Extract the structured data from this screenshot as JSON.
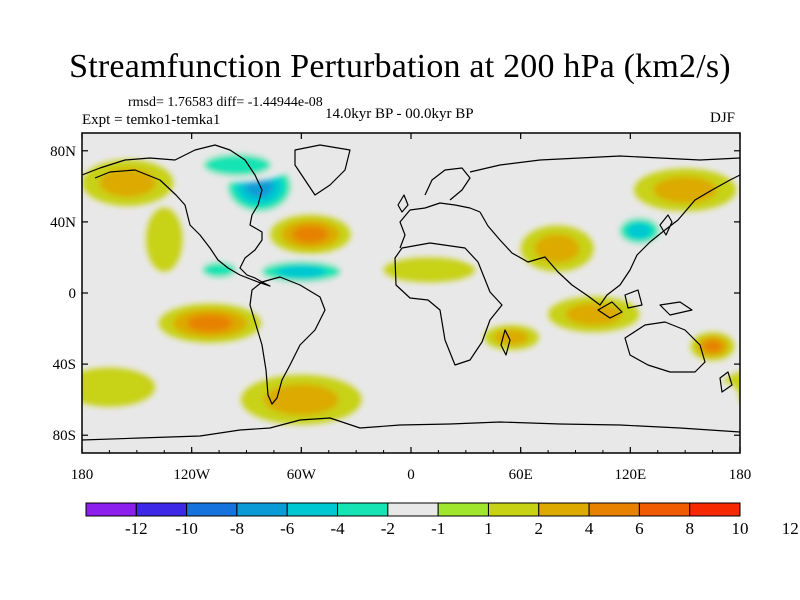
{
  "chart_data": {
    "type": "heatmap",
    "title": "Streamfunction Perturbation at 200 hPa (km2/s)",
    "stats": "rmsd= 1.76583 diff= -1.44944e-08",
    "left_label": "Expt = temko1-temka1",
    "center_label": "14.0kyr BP - 00.0kyr BP",
    "right_label": "DJF",
    "projection": "cylindrical equidistant",
    "x_range": [
      -180,
      180
    ],
    "y_range": [
      -90,
      90
    ],
    "x_ticks": [
      {
        "value": -180,
        "label": "180"
      },
      {
        "value": -120,
        "label": "120W"
      },
      {
        "value": -60,
        "label": "60W"
      },
      {
        "value": 0,
        "label": "0"
      },
      {
        "value": 60,
        "label": "60E"
      },
      {
        "value": 120,
        "label": "120E"
      },
      {
        "value": 180,
        "label": "180"
      }
    ],
    "y_ticks": [
      {
        "value": 80,
        "label": "80N"
      },
      {
        "value": 40,
        "label": "40N"
      },
      {
        "value": 0,
        "label": "0"
      },
      {
        "value": -40,
        "label": "40S"
      },
      {
        "value": -80,
        "label": "80S"
      }
    ],
    "colorbar": {
      "colors": [
        "#8c1eee",
        "#3c28e6",
        "#1473dc",
        "#0a9bd7",
        "#00c8d2",
        "#16e4b4",
        "#e8e8e8",
        "#a0e62d",
        "#c8d214",
        "#dcaa00",
        "#e68200",
        "#f05a00",
        "#f52800"
      ],
      "labels": [
        "-12",
        "-10",
        "-8",
        "-6",
        "-4",
        "-2",
        "-1",
        "1",
        "2",
        "4",
        "6",
        "8",
        "10",
        "12"
      ]
    },
    "anomalies": [
      {
        "lon": -83,
        "lat": 60,
        "value": -7,
        "rx": 22,
        "ry": 18
      },
      {
        "lon": -95,
        "lat": 72,
        "value": -4,
        "rx": 30,
        "ry": 10
      },
      {
        "lon": -55,
        "lat": 33,
        "value": 6,
        "rx": 22,
        "ry": 11
      },
      {
        "lon": -60,
        "lat": 12,
        "value": -5,
        "rx": 30,
        "ry": 8
      },
      {
        "lon": -105,
        "lat": 13,
        "value": -3,
        "rx": 15,
        "ry": 7
      },
      {
        "lon": -110,
        "lat": -17,
        "value": 6,
        "rx": 28,
        "ry": 11
      },
      {
        "lon": -60,
        "lat": -60,
        "value": 3,
        "rx": 33,
        "ry": 14
      },
      {
        "lon": -165,
        "lat": -53,
        "value": 2,
        "rx": 25,
        "ry": 11
      },
      {
        "lon": -155,
        "lat": 62,
        "value": 3,
        "rx": 25,
        "ry": 13
      },
      {
        "lon": -135,
        "lat": 30,
        "value": 2,
        "rx": 10,
        "ry": 18
      },
      {
        "lon": -30,
        "lat": 60,
        "value": -2,
        "rx": 12,
        "ry": 12
      },
      {
        "lon": 30,
        "lat": 55,
        "value": -2,
        "rx": 35,
        "ry": 10
      },
      {
        "lon": 80,
        "lat": 25,
        "value": 4,
        "rx": 20,
        "ry": 13
      },
      {
        "lon": 10,
        "lat": 13,
        "value": 2,
        "rx": 25,
        "ry": 7
      },
      {
        "lon": 40,
        "lat": 25,
        "value": -2,
        "rx": 15,
        "ry": 8
      },
      {
        "lon": 35,
        "lat": -10,
        "value": -2,
        "rx": 30,
        "ry": 8
      },
      {
        "lon": 55,
        "lat": -25,
        "value": 4,
        "rx": 15,
        "ry": 7
      },
      {
        "lon": 100,
        "lat": -12,
        "value": 4,
        "rx": 25,
        "ry": 10
      },
      {
        "lon": 125,
        "lat": 35,
        "value": -5,
        "rx": 15,
        "ry": 10
      },
      {
        "lon": 150,
        "lat": 58,
        "value": 3,
        "rx": 28,
        "ry": 12
      },
      {
        "lon": 165,
        "lat": -30,
        "value": 6,
        "rx": 12,
        "ry": 8
      },
      {
        "lon": 170,
        "lat": -60,
        "value": -2,
        "rx": 10,
        "ry": 10
      },
      {
        "lon": 80,
        "lat": -45,
        "value": -2,
        "rx": 30,
        "ry": 7
      }
    ]
  }
}
